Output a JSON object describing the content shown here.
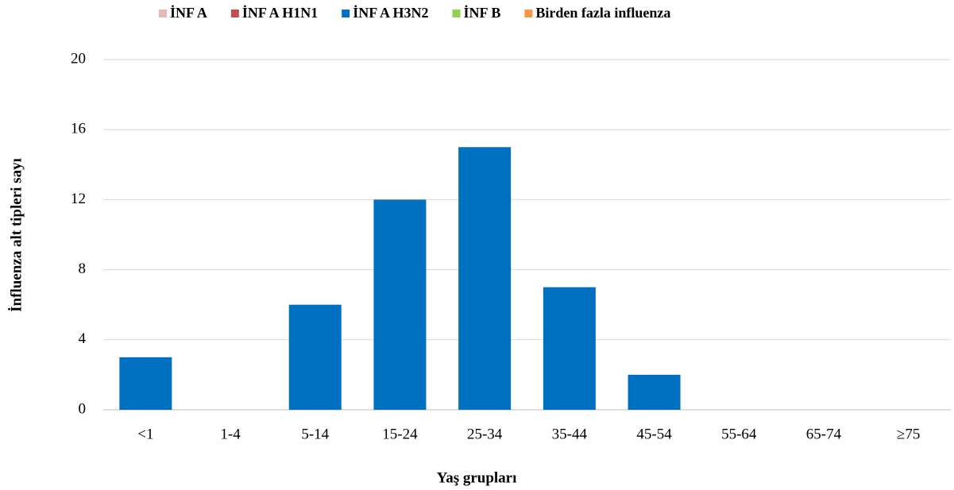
{
  "chart_data": {
    "type": "bar",
    "stacked": true,
    "x_label": "Yaş grupları",
    "y_label": "İnfluenza alt tipleri sayı",
    "categories": [
      "<1",
      "1-4",
      "5-14",
      "15-24",
      "25-34",
      "35-44",
      "45-54",
      "55-64",
      "65-74",
      "≥75"
    ],
    "series": [
      {
        "name": "İNF A",
        "color": "#e6b9b8",
        "values": [
          0,
          0,
          0,
          0,
          0,
          0,
          0,
          0,
          0,
          0
        ]
      },
      {
        "name": "İNF A H1N1",
        "color": "#c0504d",
        "values": [
          0,
          0,
          0,
          0,
          0,
          0,
          0,
          0,
          0,
          0
        ]
      },
      {
        "name": "İNF A H3N2",
        "color": "#0070c0",
        "values": [
          3,
          0,
          6,
          12,
          15,
          7,
          2,
          0,
          0,
          0
        ]
      },
      {
        "name": "İNF B",
        "color": "#92d050",
        "values": [
          0,
          0,
          0,
          0,
          0,
          0,
          0,
          0,
          0,
          0
        ]
      },
      {
        "name": "Birden fazla influenza",
        "color": "#f79646",
        "values": [
          0,
          0,
          0,
          0,
          0,
          0,
          0,
          0,
          0,
          0
        ]
      }
    ],
    "ylim": [
      0,
      20
    ],
    "yticks": [
      0,
      4,
      8,
      12,
      16,
      20
    ],
    "grid": true,
    "legend": "top"
  }
}
